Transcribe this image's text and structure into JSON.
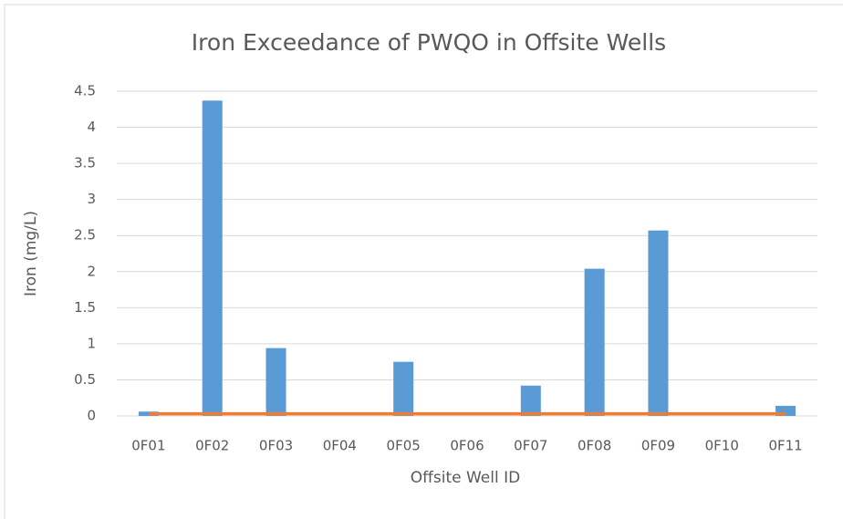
{
  "chart_data": {
    "type": "bar",
    "title": "Iron Exceedance of PWQO in Offsite Wells",
    "x_label": "Offsite Well ID",
    "y_label": "Iron (mg/L)",
    "categories": [
      "0F01",
      "0F02",
      "0F03",
      "0F04",
      "0F05",
      "0F06",
      "0F07",
      "0F08",
      "0F09",
      "0F10",
      "0F11"
    ],
    "series": [
      {
        "type": "bar",
        "color": "#5b9bd5",
        "values": [
          0.06,
          4.37,
          0.94,
          0,
          0.75,
          0,
          0.42,
          2.04,
          2.57,
          0,
          0.14
        ]
      },
      {
        "type": "line",
        "color": "#ed7d31",
        "values": [
          0.03,
          0.03,
          0.03,
          0.03,
          0.03,
          0.03,
          0.03,
          0.03,
          0.03,
          0.03,
          0.03
        ]
      }
    ],
    "ylim": [
      0,
      4.5
    ],
    "yticks": [
      0,
      0.5,
      1,
      1.5,
      2,
      2.5,
      3,
      3.5,
      4,
      4.5
    ],
    "grid": true
  }
}
